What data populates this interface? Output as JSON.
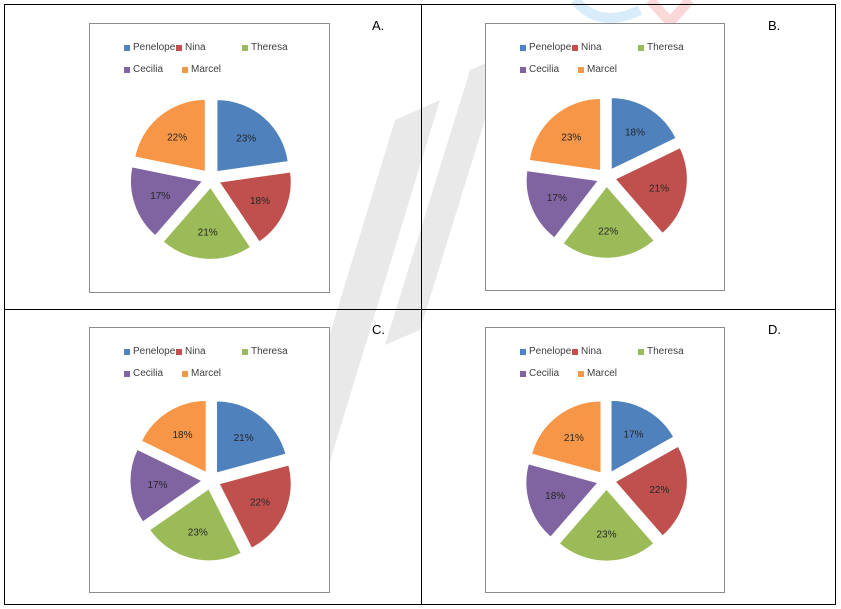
{
  "colors": {
    "Penelope": "#4F81BD",
    "Nina": "#C0504D",
    "Theresa": "#9BBB59",
    "Cecilia": "#8064A2",
    "Marcel": "#F79646"
  },
  "legend": [
    "Penelope",
    "Nina",
    "Theresa",
    "Cecilia",
    "Marcel"
  ],
  "chart_data": [
    {
      "type": "pie",
      "panel_label": "A.",
      "categories": [
        "Penelope",
        "Nina",
        "Theresa",
        "Cecilia",
        "Marcel"
      ],
      "values": [
        23,
        18,
        21,
        17,
        22
      ],
      "data_labels": [
        "23%",
        "18%",
        "21%",
        "17%",
        "22%"
      ],
      "legend_position": "top",
      "exploded": true
    },
    {
      "type": "pie",
      "panel_label": "B.",
      "categories": [
        "Penelope",
        "Nina",
        "Theresa",
        "Cecilia",
        "Marcel"
      ],
      "values": [
        18,
        21,
        22,
        17,
        23
      ],
      "data_labels": [
        "18%",
        "21%",
        "22%",
        "17%",
        "23%"
      ],
      "legend_position": "top",
      "exploded": true
    },
    {
      "type": "pie",
      "panel_label": "C.",
      "categories": [
        "Penelope",
        "Nina",
        "Theresa",
        "Cecilia",
        "Marcel"
      ],
      "values": [
        21,
        22,
        23,
        17,
        18
      ],
      "data_labels": [
        "21%",
        "22%",
        "23%",
        "17%",
        "18%"
      ],
      "legend_position": "top",
      "exploded": true
    },
    {
      "type": "pie",
      "panel_label": "D.",
      "categories": [
        "Penelope",
        "Nina",
        "Theresa",
        "Cecilia",
        "Marcel"
      ],
      "values": [
        17,
        22,
        23,
        18,
        21
      ],
      "data_labels": [
        "17%",
        "22%",
        "23%",
        "18%",
        "21%"
      ],
      "legend_position": "top",
      "exploded": true
    }
  ]
}
